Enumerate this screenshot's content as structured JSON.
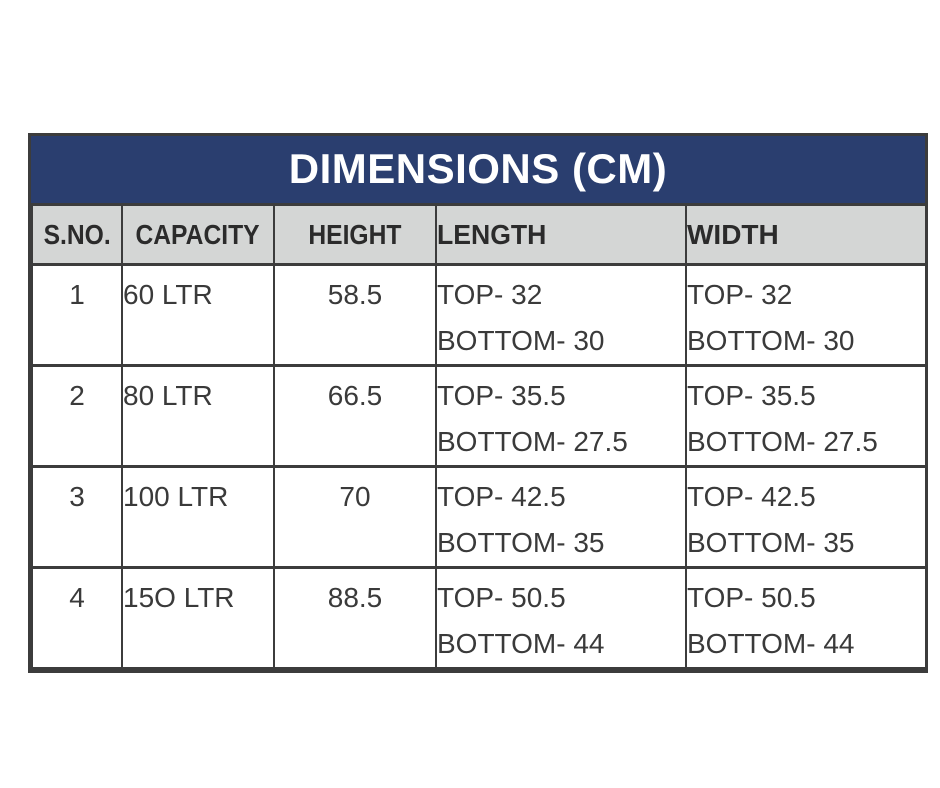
{
  "title": "DIMENSIONS (CM)",
  "table": {
    "columns": [
      "S.NO.",
      "CAPACITY",
      "HEIGHT",
      "LENGTH",
      "WIDTH"
    ],
    "rows": [
      {
        "sno": "1",
        "capacity": "60 LTR",
        "height": "58.5",
        "length": [
          "TOP- 32",
          "BOTTOM- 30"
        ],
        "width": [
          "TOP- 32",
          "BOTTOM- 30"
        ]
      },
      {
        "sno": "2",
        "capacity": "80 LTR",
        "height": "66.5",
        "length": [
          "TOP- 35.5",
          "BOTTOM- 27.5"
        ],
        "width": [
          "TOP- 35.5",
          "BOTTOM- 27.5"
        ]
      },
      {
        "sno": "3",
        "capacity": "100 LTR",
        "height": "70",
        "length": [
          "TOP- 42.5",
          "BOTTOM- 35"
        ],
        "width": [
          "TOP- 42.5",
          "BOTTOM- 35"
        ]
      },
      {
        "sno": "4",
        "capacity": "15O LTR",
        "height": "88.5",
        "length": [
          "TOP- 50.5",
          "BOTTOM- 44"
        ],
        "width": [
          "TOP- 50.5",
          "BOTTOM- 44"
        ]
      }
    ]
  },
  "colors": {
    "title_bar_bg": "#2A3E6F",
    "title_text": "#FFFFFF",
    "header_row_bg": "#D4D6D5",
    "header_text": "#2B2B2B",
    "body_text": "#3A3A3A",
    "border": "#3C3C3C",
    "page_bg": "#FFFFFF"
  }
}
